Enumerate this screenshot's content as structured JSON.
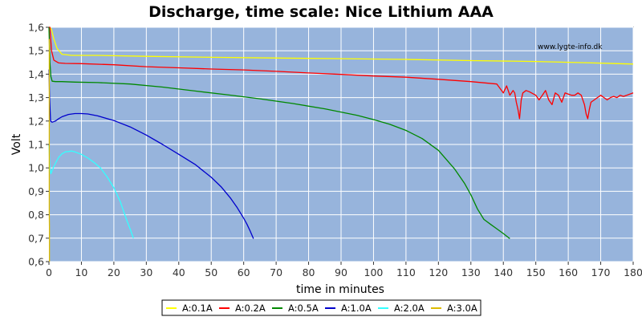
{
  "chart_data": {
    "type": "line",
    "title": "Discharge, time scale: Nice Lithium AAA",
    "xlabel": "time in minutes",
    "ylabel": "Volt",
    "watermark": "www.lygte-info.dk",
    "xlim": [
      0,
      180
    ],
    "ylim": [
      0.6,
      1.6
    ],
    "xticks": [
      0,
      10,
      20,
      30,
      40,
      50,
      60,
      70,
      80,
      90,
      100,
      110,
      120,
      130,
      140,
      150,
      160,
      170,
      180
    ],
    "yticks": [
      "0,6",
      "0,7",
      "0,8",
      "0,9",
      "1,0",
      "1,1",
      "1,2",
      "1,3",
      "1,4",
      "1,5",
      "1,6"
    ],
    "ytick_values": [
      0.6,
      0.7,
      0.8,
      0.9,
      1.0,
      1.1,
      1.2,
      1.3,
      1.4,
      1.5,
      1.6
    ],
    "grid": true,
    "legend_position": "bottom",
    "plot_background": "#97b4dc",
    "grid_color": "#ffffff",
    "series": [
      {
        "name": "A:0.1A",
        "color": "#ffff00",
        "x": [
          0,
          0.3,
          0.8,
          1.5,
          2.5,
          4,
          7,
          15,
          30,
          50,
          70,
          90,
          110,
          130,
          150,
          165,
          180
        ],
        "y": [
          1.6,
          1.6,
          1.59,
          1.55,
          1.51,
          1.485,
          1.48,
          1.48,
          1.476,
          1.472,
          1.469,
          1.466,
          1.463,
          1.458,
          1.454,
          1.449,
          1.443
        ]
      },
      {
        "name": "A:0.2A",
        "color": "#ff0000",
        "x": [
          0,
          0.3,
          0.8,
          1.5,
          3,
          5,
          10,
          20,
          30,
          40,
          50,
          60,
          70,
          80,
          90,
          100,
          110,
          120,
          130,
          138,
          140,
          141,
          142,
          143,
          143.5,
          144,
          144.5,
          145,
          145.5,
          146,
          147,
          148,
          150,
          151,
          152,
          153,
          154,
          155,
          156,
          157,
          158,
          159,
          160,
          161,
          162,
          163,
          164,
          165,
          165.5,
          166,
          166.5,
          167,
          168,
          169,
          170,
          171,
          172,
          173,
          174,
          175,
          176,
          177,
          178,
          179,
          180
        ],
        "y": [
          1.6,
          1.6,
          1.5,
          1.46,
          1.448,
          1.446,
          1.445,
          1.44,
          1.432,
          1.427,
          1.422,
          1.418,
          1.412,
          1.405,
          1.399,
          1.392,
          1.387,
          1.378,
          1.368,
          1.358,
          1.32,
          1.35,
          1.31,
          1.33,
          1.32,
          1.28,
          1.25,
          1.21,
          1.29,
          1.32,
          1.33,
          1.325,
          1.31,
          1.29,
          1.31,
          1.33,
          1.29,
          1.27,
          1.32,
          1.31,
          1.28,
          1.32,
          1.315,
          1.31,
          1.31,
          1.32,
          1.31,
          1.27,
          1.23,
          1.21,
          1.25,
          1.28,
          1.29,
          1.3,
          1.31,
          1.3,
          1.29,
          1.3,
          1.305,
          1.3,
          1.31,
          1.305,
          1.31,
          1.315,
          1.32
        ]
      },
      {
        "name": "A:0.5A",
        "color": "#008800",
        "x": [
          0,
          0.3,
          0.6,
          1,
          2,
          4,
          8,
          15,
          25,
          35,
          45,
          55,
          65,
          75,
          85,
          95,
          100,
          105,
          110,
          115,
          120,
          125,
          128,
          130,
          132,
          134,
          136,
          138,
          140,
          142
        ],
        "y": [
          1.6,
          1.45,
          1.39,
          1.37,
          1.368,
          1.368,
          1.366,
          1.364,
          1.358,
          1.345,
          1.328,
          1.312,
          1.295,
          1.275,
          1.252,
          1.224,
          1.206,
          1.186,
          1.16,
          1.125,
          1.075,
          0.995,
          0.935,
          0.885,
          0.825,
          0.78,
          0.76,
          0.74,
          0.72,
          0.698
        ]
      },
      {
        "name": "A:1.0A",
        "color": "#0000cc",
        "x": [
          0,
          0.2,
          0.5,
          1,
          2,
          3,
          4,
          6,
          8,
          10,
          12,
          15,
          20,
          25,
          30,
          35,
          40,
          45,
          50,
          53,
          56,
          58,
          60,
          61,
          62,
          63
        ],
        "y": [
          1.42,
          1.3,
          1.2,
          1.195,
          1.2,
          1.21,
          1.218,
          1.228,
          1.232,
          1.232,
          1.23,
          1.222,
          1.202,
          1.175,
          1.14,
          1.1,
          1.058,
          1.015,
          0.96,
          0.92,
          0.87,
          0.83,
          0.785,
          0.76,
          0.73,
          0.698
        ]
      },
      {
        "name": "A:2.0A",
        "color": "#33ffff",
        "x": [
          0,
          0.3,
          0.6,
          1,
          2,
          3,
          4,
          5,
          6,
          7,
          8,
          10,
          12,
          14,
          16,
          18,
          20,
          22,
          23,
          24,
          25,
          26
        ],
        "y": [
          1.1,
          1.0,
          0.975,
          0.99,
          1.02,
          1.045,
          1.06,
          1.068,
          1.07,
          1.072,
          1.068,
          1.058,
          1.042,
          1.022,
          0.998,
          0.96,
          0.915,
          0.855,
          0.815,
          0.775,
          0.74,
          0.7
        ]
      },
      {
        "name": "A:3.0A",
        "color": "#ddbb00",
        "x": [
          0.1,
          0.1,
          0.15,
          0.15
        ],
        "y": [
          1.55,
          0.8,
          0.75,
          0.6
        ]
      }
    ]
  }
}
